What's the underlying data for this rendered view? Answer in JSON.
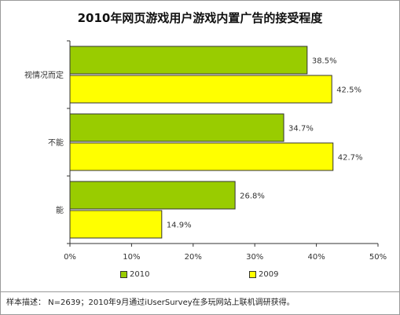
{
  "chart_data": {
    "type": "bar",
    "orientation": "horizontal",
    "title": "2010年网页游戏用户游戏内置广告的接受程度",
    "categories": [
      "视情况而定",
      "不能",
      "能"
    ],
    "series": [
      {
        "name": "2010",
        "values": [
          38.5,
          34.7,
          26.8
        ],
        "color": "#99cc00"
      },
      {
        "name": "2009",
        "values": [
          42.5,
          42.7,
          14.9
        ],
        "color": "#ffff00"
      }
    ],
    "value_labels": [
      [
        "38.5%",
        "34.7%",
        "26.8%"
      ],
      [
        "42.5%",
        "42.7%",
        "14.9%"
      ]
    ],
    "xticks": [
      "0%",
      "10%",
      "20%",
      "30%",
      "40%",
      "50%"
    ],
    "xlim": [
      0,
      50
    ],
    "xlabel": "",
    "ylabel": "",
    "grid": false,
    "legend_position": "bottom"
  },
  "note": "样本描述： N=2639；2010年9月通过iUserSurvey在多玩网站上联机调研获得。"
}
